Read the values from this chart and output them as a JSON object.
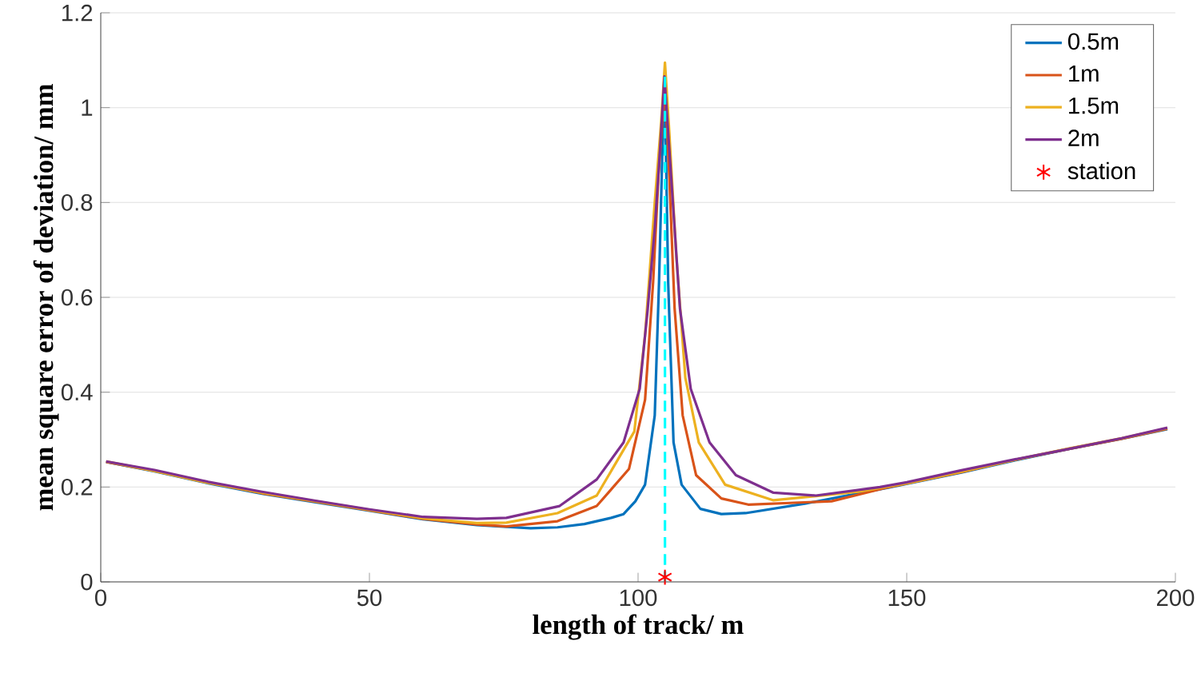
{
  "chart_data": {
    "type": "line",
    "xlabel": "length of track/ m",
    "ylabel": "mean square error of deviation/ mm",
    "xlim": [
      0,
      200
    ],
    "ylim": [
      0,
      1.2
    ],
    "xticks": [
      0,
      50,
      100,
      150,
      200
    ],
    "yticks": [
      0,
      0.2,
      0.4,
      0.6,
      0.8,
      1,
      1.2
    ],
    "grid": "y",
    "legend": "top right",
    "marker": "none",
    "line_style": "solid",
    "series": [
      {
        "name": "0.5m",
        "color": "#0072bd",
        "x": [
          1,
          10,
          20,
          30,
          40,
          50,
          60,
          70,
          80,
          85,
          90,
          95,
          97.3,
          99.5,
          101.3,
          103.1,
          103.9,
          104.5,
          105,
          105.6,
          106.6,
          108.1,
          111.6,
          115.5,
          120,
          131,
          146.7,
          160,
          170,
          180,
          190,
          198.5
        ],
        "values": [
          0.253,
          0.233,
          0.208,
          0.186,
          0.168,
          0.15,
          0.132,
          0.12,
          0.113,
          0.115,
          0.122,
          0.135,
          0.143,
          0.17,
          0.205,
          0.351,
          0.632,
          0.9,
          1.03,
          0.632,
          0.294,
          0.205,
          0.154,
          0.143,
          0.145,
          0.165,
          0.199,
          0.23,
          0.256,
          0.28,
          0.302,
          0.322
        ]
      },
      {
        "name": "1m",
        "color": "#d95319",
        "x": [
          1,
          10,
          20,
          30,
          40,
          50,
          60,
          70,
          75.5,
          85,
          92.3,
          98.3,
          101.3,
          102.8,
          103.8,
          105,
          105.8,
          106.8,
          108.3,
          110.8,
          115.5,
          120.5,
          136,
          146,
          160,
          170,
          180,
          190,
          198.5
        ],
        "values": [
          0.253,
          0.234,
          0.209,
          0.187,
          0.169,
          0.151,
          0.133,
          0.121,
          0.117,
          0.128,
          0.16,
          0.238,
          0.384,
          0.632,
          0.857,
          1.05,
          0.857,
          0.576,
          0.351,
          0.225,
          0.176,
          0.163,
          0.17,
          0.198,
          0.231,
          0.257,
          0.28,
          0.302,
          0.323
        ]
      },
      {
        "name": "1.5m",
        "color": "#edb120",
        "x": [
          1,
          10,
          20,
          30,
          40,
          50,
          60,
          70,
          75.5,
          85,
          92.3,
          99.3,
          101.3,
          103.1,
          104.3,
          105,
          105.8,
          107.1,
          108.8,
          111.3,
          116.2,
          125.2,
          141,
          150,
          160,
          170,
          180,
          190,
          198.5
        ],
        "values": [
          0.254,
          0.234,
          0.209,
          0.188,
          0.17,
          0.152,
          0.134,
          0.124,
          0.125,
          0.145,
          0.182,
          0.317,
          0.52,
          0.8,
          0.97,
          1.095,
          0.95,
          0.689,
          0.43,
          0.294,
          0.205,
          0.172,
          0.19,
          0.208,
          0.232,
          0.257,
          0.281,
          0.303,
          0.324
        ]
      },
      {
        "name": "2m",
        "color": "#7e2f8e",
        "x": [
          1,
          10,
          20,
          30,
          40,
          50,
          60,
          70,
          75.5,
          85.4,
          92.3,
          97.3,
          100.3,
          101.8,
          103.1,
          104.1,
          104.9,
          105.8,
          106.8,
          107.8,
          109.8,
          113.3,
          118.2,
          125.2,
          133.1,
          145,
          150,
          160,
          170,
          180,
          190,
          198.5
        ],
        "values": [
          0.254,
          0.236,
          0.211,
          0.19,
          0.171,
          0.153,
          0.137,
          0.133,
          0.135,
          0.16,
          0.216,
          0.294,
          0.407,
          0.576,
          0.745,
          0.914,
          1.066,
          0.914,
          0.745,
          0.576,
          0.407,
          0.294,
          0.225,
          0.188,
          0.182,
          0.2,
          0.21,
          0.235,
          0.258,
          0.28,
          0.303,
          0.325
        ]
      },
      {
        "color": "#00ffff",
        "line_style": "dashed",
        "x": [
          105,
          105
        ],
        "values": [
          0,
          1.07
        ]
      },
      {
        "name": "station",
        "type": "scatter",
        "marker": "cross",
        "color": "#ff0000",
        "x": [
          105
        ],
        "values": [
          0.01
        ]
      }
    ]
  }
}
